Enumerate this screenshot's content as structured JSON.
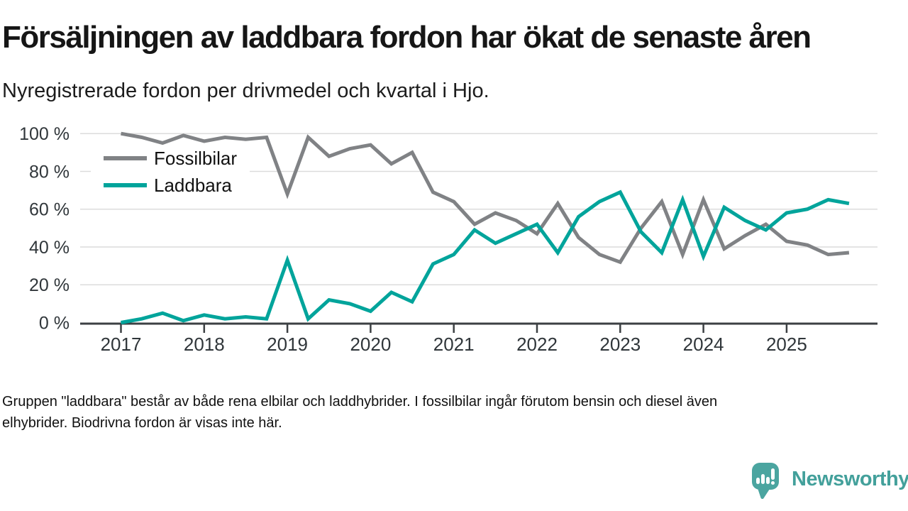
{
  "header": {
    "title": "Försäljningen av laddbara fordon har ökat de senaste åren",
    "subtitle": "Nyregistrerade fordon per drivmedel och kvartal i Hjo."
  },
  "chart_data": {
    "type": "line",
    "title": "Försäljningen av laddbara fordon har ökat de senaste åren",
    "subtitle": "Nyregistrerade fordon per drivmedel och kvartal i Hjo.",
    "grid": "horizontal",
    "legend_position": "top-left-inside",
    "ylim": [
      0,
      100
    ],
    "y_tick_labels": [
      "0 %",
      "20 %",
      "40 %",
      "60 %",
      "80 %",
      "100 %"
    ],
    "x_tick_labels": [
      "2017",
      "2018",
      "2019",
      "2020",
      "2021",
      "2022",
      "2023",
      "2024",
      "2025"
    ],
    "categories": [
      "2017 Q1",
      "2017 Q2",
      "2017 Q3",
      "2017 Q4",
      "2018 Q1",
      "2018 Q2",
      "2018 Q3",
      "2018 Q4",
      "2019 Q1",
      "2019 Q2",
      "2019 Q3",
      "2019 Q4",
      "2020 Q1",
      "2020 Q2",
      "2020 Q3",
      "2020 Q4",
      "2021 Q1",
      "2021 Q2",
      "2021 Q3",
      "2021 Q4",
      "2022 Q1",
      "2022 Q2",
      "2022 Q3",
      "2022 Q4",
      "2023 Q1",
      "2023 Q2",
      "2023 Q3",
      "2023 Q4",
      "2024 Q1",
      "2024 Q2",
      "2024 Q3",
      "2024 Q4",
      "2025 Q1",
      "2025 Q2",
      "2025 Q3",
      "2025 Q4"
    ],
    "series": [
      {
        "name": "Fossilbilar",
        "color": "#808285",
        "values": [
          100,
          98,
          95,
          99,
          96,
          98,
          97,
          98,
          68,
          98,
          88,
          92,
          94,
          84,
          90,
          69,
          64,
          52,
          58,
          54,
          47,
          63,
          45,
          36,
          32,
          50,
          64,
          36,
          65,
          39,
          46,
          52,
          43,
          41,
          36,
          37
        ]
      },
      {
        "name": "Laddbara",
        "color": "#00a49b",
        "values": [
          0,
          2,
          5,
          1,
          4,
          2,
          3,
          2,
          33,
          2,
          12,
          10,
          6,
          16,
          11,
          31,
          36,
          49,
          42,
          47,
          52,
          37,
          56,
          64,
          69,
          48,
          37,
          65,
          35,
          61,
          54,
          49,
          58,
          60,
          65,
          63
        ]
      }
    ],
    "axis_color": "#3c4043",
    "gridline_color": "#dcdcdc",
    "tick_label_color": "#30363a"
  },
  "footer": {
    "note_lines": [
      "Gruppen \"laddbara\" består av både rena elbilar och laddhybrider. I fossilbilar ingår förutom bensin och diesel även",
      "elhybrider. Biodrivna fordon är visas inte här."
    ]
  },
  "branding": {
    "logo_text": "Newsworthy",
    "logo_color": "#4ba5a0",
    "logo_icon": "speech-bubble-bar-chart-icon"
  }
}
